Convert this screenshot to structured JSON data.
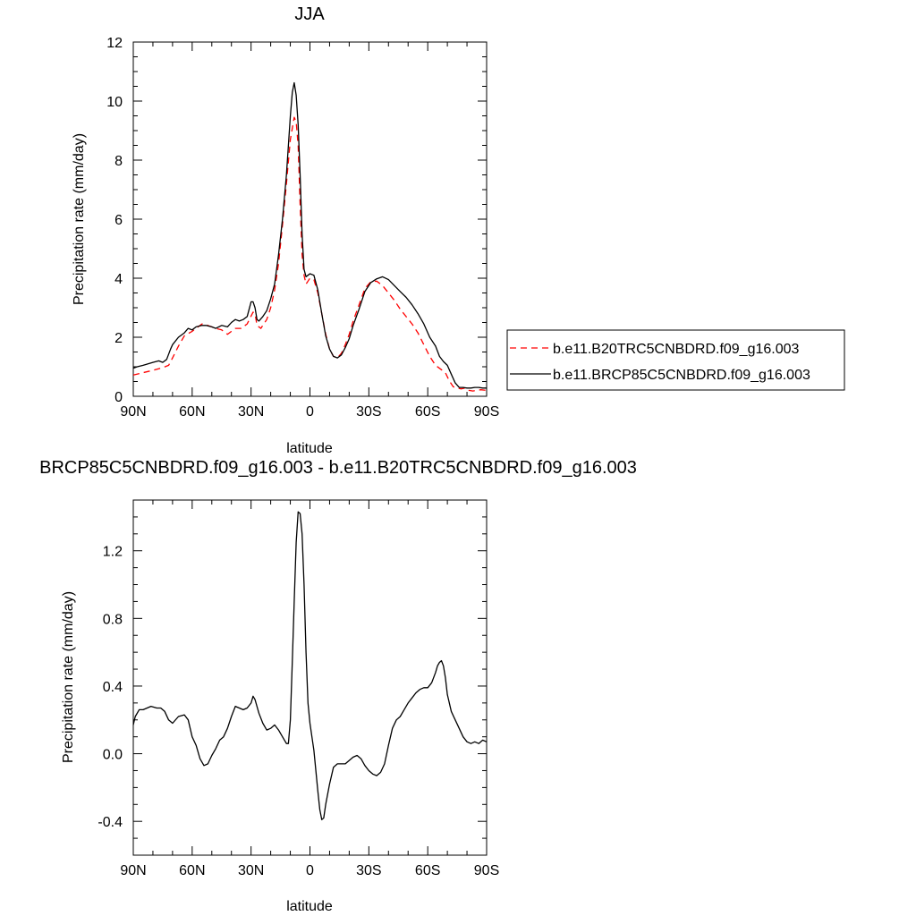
{
  "chart_data": [
    {
      "type": "line",
      "title": "JJA",
      "xlabel": "latitude",
      "ylabel": "Precipitation rate (mm/day)",
      "xlim": [
        90,
        -90
      ],
      "ylim": [
        0,
        12
      ],
      "x_ticks": [
        90,
        60,
        30,
        0,
        -30,
        -60,
        -90
      ],
      "x_tick_labels": [
        "90N",
        "60N",
        "30N",
        "0",
        "30S",
        "60S",
        "90S"
      ],
      "y_ticks": [
        0,
        2,
        4,
        6,
        8,
        10,
        12
      ],
      "y_tick_labels": [
        "0",
        "2",
        "4",
        "6",
        "8",
        "10",
        "12"
      ],
      "legend_position": "right",
      "series": [
        {
          "name": "b.e11.B20TRC5CNBDRD.f09_g16.003",
          "color": "#ff0000",
          "dash": "dashed",
          "x": [
            90,
            85,
            80,
            75,
            72,
            70,
            67,
            64,
            60,
            55,
            52,
            48,
            45,
            42,
            38,
            35,
            32,
            29,
            28,
            27,
            25,
            22,
            20,
            18,
            16,
            14,
            12,
            10,
            8,
            7,
            6,
            5,
            4,
            3,
            2,
            1,
            0,
            -2,
            -4,
            -6,
            -8,
            -10,
            -12,
            -14,
            -16,
            -18,
            -20,
            -22,
            -25,
            -28,
            -31,
            -34,
            -37,
            -40,
            -43,
            -46,
            -49,
            -52,
            -55,
            -58,
            -61,
            -64,
            -67,
            -69,
            -71,
            -73,
            -75,
            -77,
            -79,
            -81,
            -83,
            -85,
            -87,
            -90
          ],
          "y": [
            0.72,
            0.8,
            0.88,
            0.97,
            1.05,
            1.3,
            1.7,
            2.05,
            2.2,
            2.45,
            2.4,
            2.3,
            2.25,
            2.1,
            2.3,
            2.3,
            2.45,
            2.85,
            2.8,
            2.4,
            2.3,
            2.6,
            3.0,
            3.6,
            4.5,
            5.8,
            7.2,
            8.7,
            9.45,
            9.3,
            8.5,
            6.5,
            4.8,
            4.1,
            3.8,
            3.9,
            4.0,
            3.95,
            3.5,
            2.8,
            2.1,
            1.6,
            1.35,
            1.3,
            1.45,
            1.75,
            2.1,
            2.55,
            3.1,
            3.65,
            3.88,
            3.9,
            3.75,
            3.5,
            3.25,
            2.95,
            2.7,
            2.45,
            2.15,
            1.75,
            1.35,
            1.05,
            0.9,
            0.8,
            0.52,
            0.32,
            0.28,
            0.25,
            0.28,
            0.2,
            0.18,
            0.2,
            0.22,
            0.2
          ]
        },
        {
          "name": "b.e11.BRCP85C5CNBDRD.f09_g16.003",
          "color": "#000000",
          "dash": "solid",
          "x": [
            90,
            88,
            85,
            80,
            77,
            75,
            73,
            71,
            70,
            67,
            64,
            62,
            60,
            58,
            55,
            53,
            50,
            48,
            45,
            42,
            40,
            38,
            36,
            34,
            32,
            30,
            29,
            28,
            27,
            26,
            24,
            22,
            20,
            18,
            16,
            14,
            12,
            10,
            9,
            8,
            7,
            6,
            5,
            4,
            3,
            2,
            1,
            0,
            -2,
            -4,
            -6,
            -8,
            -10,
            -12,
            -14,
            -16,
            -18,
            -20,
            -22,
            -25,
            -28,
            -31,
            -34,
            -37,
            -40,
            -43,
            -46,
            -49,
            -52,
            -55,
            -58,
            -61,
            -64,
            -66,
            -68,
            -70,
            -72,
            -74,
            -76,
            -78,
            -80,
            -82,
            -84,
            -86,
            -88,
            -90
          ],
          "y": [
            0.95,
            1.0,
            1.05,
            1.15,
            1.2,
            1.15,
            1.25,
            1.6,
            1.75,
            2.0,
            2.15,
            2.3,
            2.25,
            2.35,
            2.4,
            2.4,
            2.35,
            2.3,
            2.4,
            2.35,
            2.5,
            2.6,
            2.55,
            2.6,
            2.7,
            3.2,
            3.2,
            3.0,
            2.6,
            2.55,
            2.7,
            2.9,
            3.3,
            3.8,
            4.8,
            6.0,
            7.5,
            9.5,
            10.3,
            10.62,
            10.2,
            9.2,
            7.5,
            5.5,
            4.3,
            4.05,
            4.1,
            4.15,
            4.1,
            3.6,
            2.8,
            2.05,
            1.6,
            1.35,
            1.3,
            1.4,
            1.65,
            1.95,
            2.4,
            2.95,
            3.55,
            3.85,
            3.98,
            4.05,
            3.95,
            3.75,
            3.55,
            3.35,
            3.1,
            2.8,
            2.45,
            2.0,
            1.7,
            1.35,
            1.18,
            1.05,
            0.75,
            0.45,
            0.3,
            0.3,
            0.28,
            0.28,
            0.3,
            0.3,
            0.28,
            0.28
          ]
        }
      ]
    },
    {
      "type": "line",
      "title": "BRCP85C5CNBDRD.f09_g16.003 - b.e11.B20TRC5CNBDRD.f09_g16.003",
      "xlabel": "latitude",
      "ylabel": "Precipitation rate (mm/day)",
      "xlim": [
        90,
        -90
      ],
      "ylim": [
        -0.6,
        1.5
      ],
      "x_ticks": [
        90,
        60,
        30,
        0,
        -30,
        -60,
        -90
      ],
      "x_tick_labels": [
        "90N",
        "60N",
        "30N",
        "0",
        "30S",
        "60S",
        "90S"
      ],
      "y_ticks": [
        -0.4,
        0.0,
        0.4,
        0.8,
        1.2
      ],
      "y_tick_labels": [
        "-0.4",
        "0.0",
        "0.4",
        "0.8",
        "1.2"
      ],
      "series": [
        {
          "color": "#000000",
          "dash": "solid",
          "x": [
            90,
            89,
            87,
            85,
            83,
            81,
            78,
            76,
            74,
            72,
            70,
            67,
            64,
            62,
            60,
            58,
            56,
            54,
            52,
            50,
            48,
            46,
            44,
            42,
            40,
            38,
            36,
            34,
            32,
            30,
            29,
            28,
            26,
            24,
            22,
            20,
            18,
            16,
            14,
            12,
            11,
            10,
            9,
            8,
            7,
            6,
            5,
            4,
            3,
            2,
            1,
            0,
            -1,
            -2,
            -3,
            -4,
            -5,
            -6,
            -7,
            -8,
            -10,
            -12,
            -14,
            -16,
            -18,
            -20,
            -22,
            -24,
            -26,
            -28,
            -30,
            -32,
            -34,
            -36,
            -38,
            -40,
            -42,
            -44,
            -46,
            -48,
            -50,
            -52,
            -54,
            -56,
            -58,
            -60,
            -62,
            -64,
            -65,
            -66,
            -67,
            -68,
            -69,
            -70,
            -72,
            -74,
            -76,
            -78,
            -80,
            -82,
            -84,
            -86,
            -88,
            -90
          ],
          "y": [
            0.17,
            0.22,
            0.26,
            0.26,
            0.27,
            0.28,
            0.27,
            0.27,
            0.25,
            0.2,
            0.18,
            0.22,
            0.23,
            0.2,
            0.1,
            0.05,
            -0.03,
            -0.07,
            -0.06,
            -0.01,
            0.03,
            0.08,
            0.1,
            0.15,
            0.22,
            0.28,
            0.27,
            0.26,
            0.27,
            0.3,
            0.34,
            0.32,
            0.24,
            0.18,
            0.14,
            0.15,
            0.17,
            0.14,
            0.1,
            0.06,
            0.06,
            0.2,
            0.55,
            0.9,
            1.25,
            1.43,
            1.42,
            1.3,
            1.0,
            0.6,
            0.3,
            0.18,
            0.1,
            0.02,
            -0.1,
            -0.22,
            -0.33,
            -0.39,
            -0.38,
            -0.3,
            -0.18,
            -0.08,
            -0.06,
            -0.06,
            -0.06,
            -0.04,
            -0.02,
            -0.01,
            -0.03,
            -0.07,
            -0.1,
            -0.12,
            -0.13,
            -0.11,
            -0.06,
            0.05,
            0.15,
            0.2,
            0.22,
            0.26,
            0.3,
            0.33,
            0.36,
            0.38,
            0.39,
            0.39,
            0.42,
            0.48,
            0.52,
            0.54,
            0.55,
            0.52,
            0.45,
            0.35,
            0.25,
            0.2,
            0.15,
            0.1,
            0.07,
            0.06,
            0.07,
            0.06,
            0.08,
            0.07
          ]
        }
      ]
    }
  ]
}
